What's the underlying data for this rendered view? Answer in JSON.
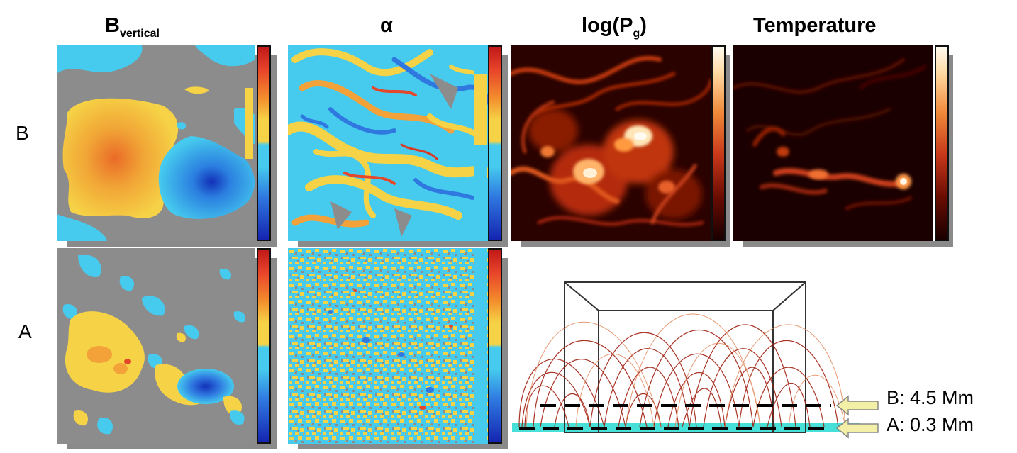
{
  "figure": {
    "column_titles": {
      "b_vertical_main": "B",
      "b_vertical_sub": "vertical",
      "alpha": "α",
      "log_pg_main": "log(P",
      "log_pg_sub": "g",
      "log_pg_close": ")",
      "temperature": "Temperature"
    },
    "row_labels": {
      "top": "B",
      "bottom": "A"
    },
    "height_labels": {
      "b": "B: 4.5 Mm",
      "a": "A: 0.3 Mm"
    },
    "colors": {
      "background": "#8c8c8c",
      "positive": "#f5c542",
      "negative": "#44c8ee",
      "heat_dark": "#1a0000",
      "heat_bright": "#ffe6b0",
      "cube": "#333333",
      "field_line": "#a01e0e"
    }
  }
}
